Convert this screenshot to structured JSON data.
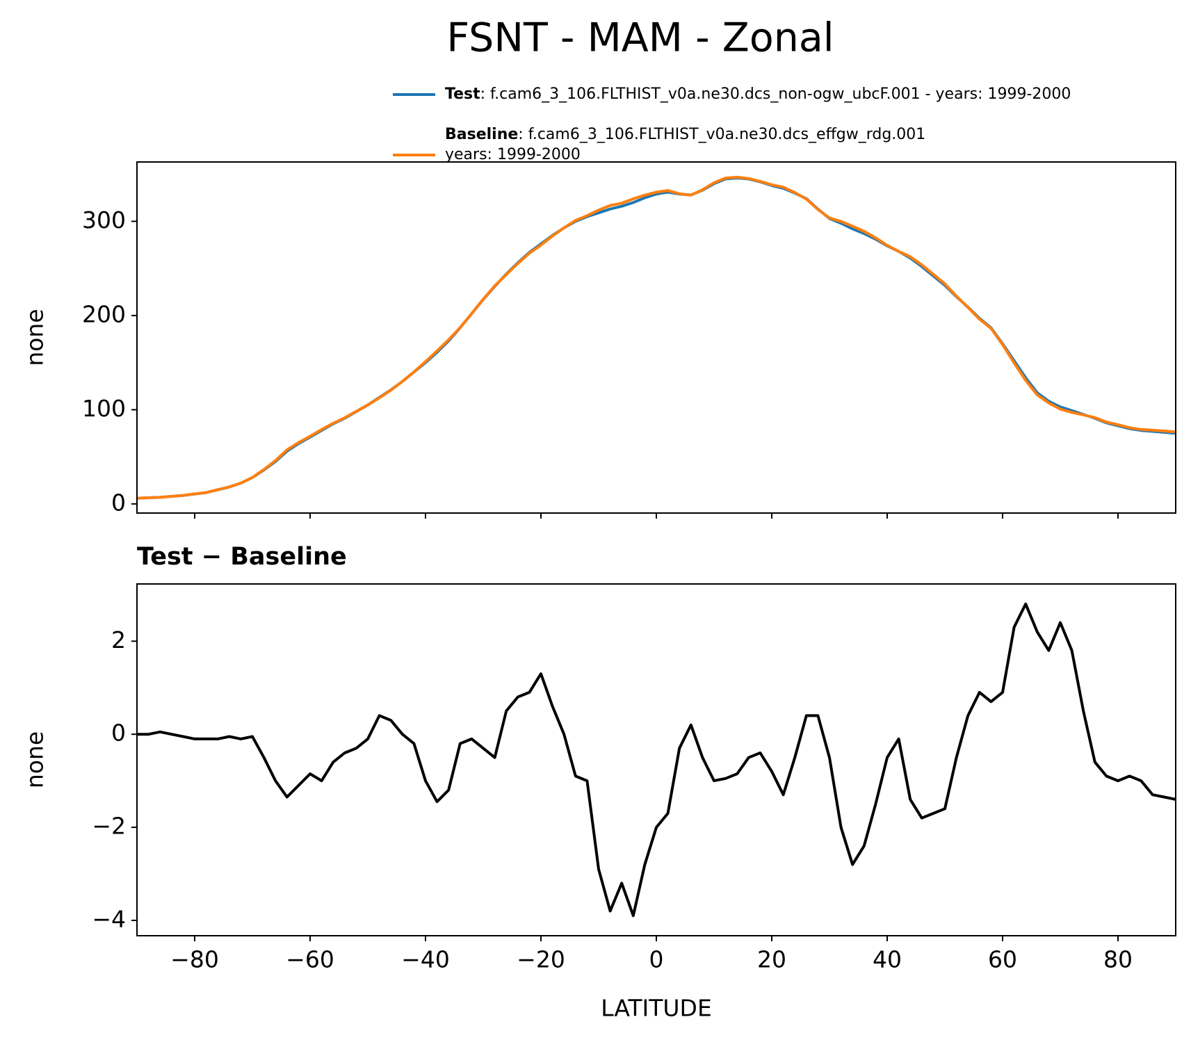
{
  "title": "FSNT - MAM - Zonal",
  "chart_data": [
    {
      "type": "line",
      "ylabel": "none",
      "x": [
        -90,
        -88,
        -86,
        -84,
        -82,
        -80,
        -78,
        -76,
        -74,
        -72,
        -70,
        -68,
        -66,
        -64,
        -62,
        -60,
        -58,
        -56,
        -54,
        -52,
        -50,
        -48,
        -46,
        -44,
        -42,
        -40,
        -38,
        -36,
        -34,
        -32,
        -30,
        -28,
        -26,
        -24,
        -22,
        -20,
        -18,
        -16,
        -14,
        -12,
        -10,
        -8,
        -6,
        -4,
        -2,
        0,
        2,
        4,
        6,
        8,
        10,
        12,
        14,
        16,
        18,
        20,
        22,
        24,
        26,
        28,
        30,
        32,
        34,
        36,
        38,
        40,
        42,
        44,
        46,
        48,
        50,
        52,
        54,
        56,
        58,
        60,
        62,
        64,
        66,
        68,
        70,
        72,
        74,
        76,
        78,
        80,
        82,
        84,
        86,
        88,
        90
      ],
      "series": [
        {
          "name": "Test",
          "description": [
            ": f.cam6_3_106.FLTHIST_v0a.ne30.dcs_non-ogw_ubcF.001 - years: 1999-2000"
          ],
          "color": "#1f77b4",
          "values": [
            6,
            6.5,
            7,
            8,
            9,
            10.5,
            12,
            15,
            18,
            22,
            28,
            36,
            45,
            56,
            64,
            71,
            78,
            85,
            91,
            98,
            105,
            113,
            121,
            130,
            140,
            150,
            161,
            173,
            187,
            202,
            217,
            231,
            244,
            256,
            267,
            276,
            285,
            293,
            300,
            305,
            309,
            313,
            316,
            320,
            325,
            329,
            331,
            329,
            328,
            333,
            340,
            345,
            346,
            345,
            342,
            338,
            335,
            330,
            324,
            313,
            303,
            298,
            292,
            287,
            281,
            274,
            268,
            261,
            252,
            242,
            232,
            220,
            209,
            197,
            187,
            170,
            152,
            134,
            118,
            109,
            103,
            99,
            95,
            91,
            86,
            83,
            80,
            78,
            77,
            76,
            75
          ]
        },
        {
          "name": "Baseline",
          "description": [
            ": f.cam6_3_106.FLTHIST_v0a.ne30.dcs_effgw_rdg.001",
            "years: 1999-2000"
          ],
          "color": "#ff7f0e",
          "values": [
            6,
            6.5,
            6.95,
            8,
            9.05,
            10.6,
            12.1,
            15.1,
            18.05,
            22.1,
            28.05,
            36.5,
            46,
            57.35,
            65.1,
            71.85,
            79,
            85.6,
            91.4,
            98.3,
            105.1,
            112.6,
            120.7,
            130,
            140.2,
            151,
            162.45,
            174.2,
            187.2,
            202.1,
            217.3,
            231.5,
            243.5,
            255.2,
            266.1,
            274.7,
            284.4,
            293,
            300.9,
            306,
            311.9,
            316.8,
            319.2,
            323.9,
            327.8,
            331,
            332.7,
            329.3,
            327.8,
            333.5,
            341,
            345.95,
            346.85,
            345.5,
            342.4,
            338.8,
            336.3,
            330.5,
            323.6,
            312.6,
            303.5,
            300,
            294.8,
            289.4,
            282.5,
            274.5,
            268.1,
            262.4,
            253.8,
            243.7,
            233.6,
            220.5,
            208.6,
            196.1,
            186.3,
            169.1,
            149.7,
            131.2,
            115.8,
            107.2,
            100.6,
            97.2,
            94.5,
            91.6,
            86.9,
            84,
            80.9,
            79,
            78.3,
            77.35,
            76.4
          ]
        }
      ],
      "xlim": [
        -90,
        90
      ],
      "ylim": [
        -9.7,
        363
      ],
      "xticks": [
        {
          "value": -80,
          "label": "−80"
        },
        {
          "value": -60,
          "label": "−60"
        },
        {
          "value": -40,
          "label": "−40"
        },
        {
          "value": -20,
          "label": "−20"
        },
        0,
        20,
        40,
        60,
        80
      ],
      "yticks": [
        0,
        100,
        200,
        300
      ]
    },
    {
      "type": "line",
      "title": "Test − Baseline",
      "xlabel": "LATITUDE",
      "ylabel": "none",
      "x": [
        -90,
        -88,
        -86,
        -84,
        -82,
        -80,
        -78,
        -76,
        -74,
        -72,
        -70,
        -68,
        -66,
        -64,
        -62,
        -60,
        -58,
        -56,
        -54,
        -52,
        -50,
        -48,
        -46,
        -44,
        -42,
        -40,
        -38,
        -36,
        -34,
        -32,
        -30,
        -28,
        -26,
        -24,
        -22,
        -20,
        -18,
        -16,
        -14,
        -12,
        -10,
        -8,
        -6,
        -4,
        -2,
        0,
        2,
        4,
        6,
        8,
        10,
        12,
        14,
        16,
        18,
        20,
        22,
        24,
        26,
        28,
        30,
        32,
        34,
        36,
        38,
        40,
        42,
        44,
        46,
        48,
        50,
        52,
        54,
        56,
        58,
        60,
        62,
        64,
        66,
        68,
        70,
        72,
        74,
        76,
        78,
        80,
        82,
        84,
        86,
        88,
        90
      ],
      "series": [
        {
          "color": "#000000",
          "values": [
            0,
            0,
            0.05,
            0,
            -0.05,
            -0.1,
            -0.1,
            -0.1,
            -0.05,
            -0.1,
            -0.05,
            -0.5,
            -1,
            -1.35,
            -1.1,
            -0.85,
            -1,
            -0.6,
            -0.4,
            -0.3,
            -0.1,
            0.4,
            0.3,
            0,
            -0.2,
            -1,
            -1.45,
            -1.2,
            -0.2,
            -0.1,
            -0.3,
            -0.5,
            0.5,
            0.8,
            0.9,
            1.3,
            0.6,
            0,
            -0.9,
            -1,
            -2.9,
            -3.8,
            -3.2,
            -3.9,
            -2.8,
            -2,
            -1.7,
            -0.3,
            0.2,
            -0.5,
            -1,
            -0.95,
            -0.85,
            -0.5,
            -0.4,
            -0.8,
            -1.3,
            -0.5,
            0.4,
            0.4,
            -0.5,
            -2,
            -2.8,
            -2.4,
            -1.5,
            -0.5,
            -0.1,
            -1.4,
            -1.8,
            -1.7,
            -1.6,
            -0.5,
            0.4,
            0.9,
            0.7,
            0.9,
            2.3,
            2.8,
            2.2,
            1.8,
            2.4,
            1.8,
            0.5,
            -0.6,
            -0.9,
            -1,
            -0.9,
            -1,
            -1.3,
            -1.35,
            -1.4
          ]
        }
      ],
      "xlim": [
        -90,
        90
      ],
      "ylim": [
        -4.33,
        3.23
      ],
      "xticks": [
        {
          "value": -80,
          "label": "−80"
        },
        {
          "value": -60,
          "label": "−60"
        },
        {
          "value": -40,
          "label": "−40"
        },
        {
          "value": -20,
          "label": "−20"
        },
        0,
        20,
        40,
        60,
        80
      ],
      "yticks": [
        {
          "value": -4,
          "label": "−4"
        },
        {
          "value": -2,
          "label": "−2"
        },
        0,
        2
      ]
    }
  ]
}
